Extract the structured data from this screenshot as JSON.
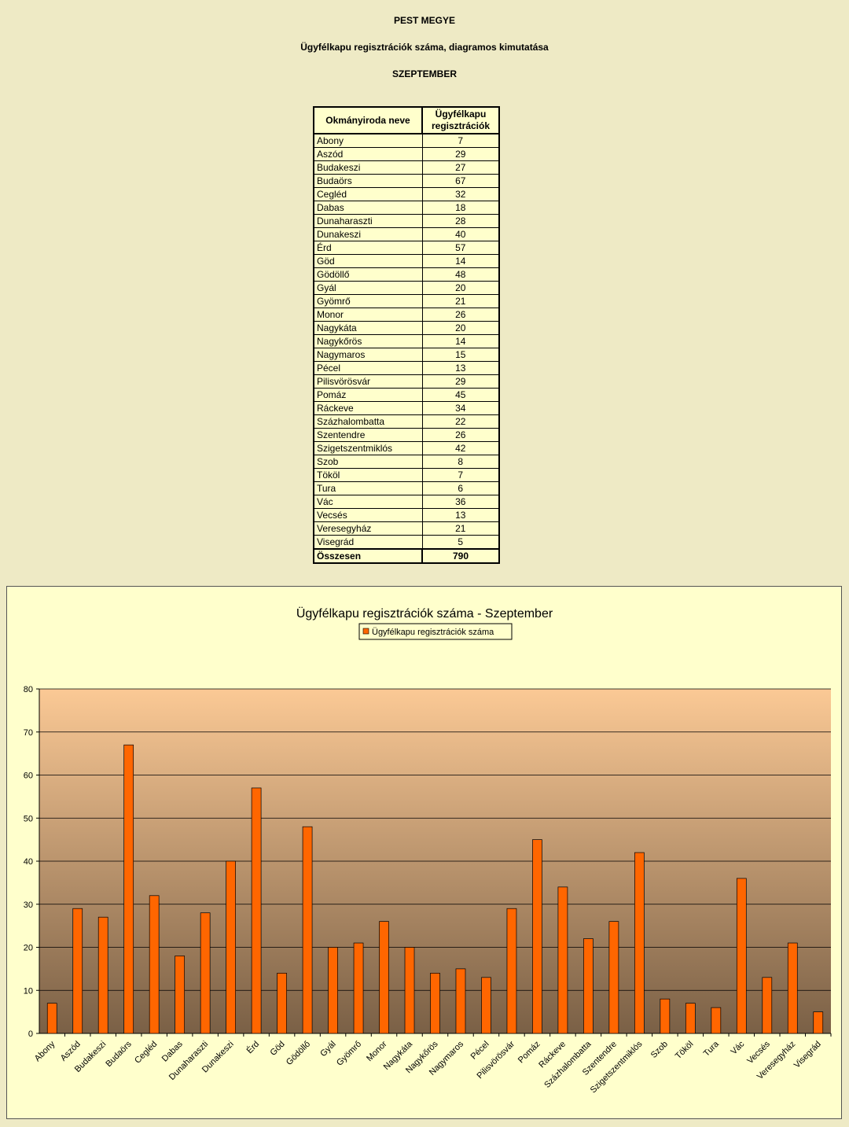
{
  "header": {
    "line1": "PEST MEGYE",
    "line2": "Ügyfélkapu regisztrációk száma, diagramos kimutatása",
    "line3": "SZEPTEMBER"
  },
  "table": {
    "col1": "Okmányiroda neve",
    "col2_line1": "Ügyfélkapu",
    "col2_line2": "regisztrációk",
    "total_label": "Összesen",
    "total_value": "790"
  },
  "colors": {
    "bar": "#ff6600",
    "plot_top": "#fbc995",
    "plot_bottom": "#7a6046"
  },
  "chart_data": {
    "type": "bar",
    "title": "Ügyfélkapu regisztrációk száma - Szeptember",
    "legend_position": "top",
    "xlabel": "",
    "ylabel": "",
    "ylim": [
      0,
      80
    ],
    "yticks": [
      0,
      10,
      20,
      30,
      40,
      50,
      60,
      70,
      80
    ],
    "grid": true,
    "categories": [
      "Abony",
      "Aszód",
      "Budakeszi",
      "Budaörs",
      "Cegléd",
      "Dabas",
      "Dunaharaszti",
      "Dunakeszi",
      "Érd",
      "Göd",
      "Gödöllő",
      "Gyál",
      "Gyömrő",
      "Monor",
      "Nagykáta",
      "Nagykőrös",
      "Nagymaros",
      "Pécel",
      "Pilisvörösvár",
      "Pomáz",
      "Ráckeve",
      "Százhalombatta",
      "Szentendre",
      "Szigetszentmiklós",
      "Szob",
      "Tököl",
      "Tura",
      "Vác",
      "Vecsés",
      "Veresegyház",
      "Visegrád"
    ],
    "series": [
      {
        "name": "Ügyfélkapu regisztrációk száma",
        "values": [
          7,
          29,
          27,
          67,
          32,
          18,
          28,
          40,
          57,
          14,
          48,
          20,
          21,
          26,
          20,
          14,
          15,
          13,
          29,
          45,
          34,
          22,
          26,
          42,
          8,
          7,
          6,
          36,
          13,
          21,
          5
        ]
      }
    ]
  }
}
